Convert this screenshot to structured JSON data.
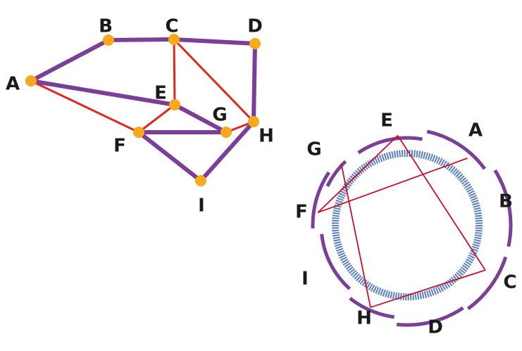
{
  "graph": {
    "nodes": [
      {
        "id": "A",
        "label": "A"
      },
      {
        "id": "B",
        "label": "B"
      },
      {
        "id": "C",
        "label": "C"
      },
      {
        "id": "D",
        "label": "D"
      },
      {
        "id": "E",
        "label": "E"
      },
      {
        "id": "F",
        "label": "F"
      },
      {
        "id": "G",
        "label": "G"
      },
      {
        "id": "H",
        "label": "H"
      },
      {
        "id": "I",
        "label": "I"
      }
    ],
    "purple_edges": [
      [
        "A",
        "B"
      ],
      [
        "B",
        "C"
      ],
      [
        "C",
        "D"
      ],
      [
        "D",
        "H"
      ],
      [
        "A",
        "E"
      ],
      [
        "E",
        "G"
      ],
      [
        "F",
        "G"
      ],
      [
        "F",
        "I"
      ],
      [
        "I",
        "H"
      ]
    ],
    "red_edges": [
      [
        "A",
        "F"
      ],
      [
        "C",
        "E"
      ],
      [
        "C",
        "H"
      ],
      [
        "E",
        "F"
      ],
      [
        "G",
        "H"
      ]
    ]
  },
  "circle_embedding": {
    "order": [
      "E",
      "A",
      "B",
      "C",
      "D",
      "H",
      "I",
      "F",
      "G"
    ],
    "arc_labels": [
      {
        "label": "E"
      },
      {
        "label": "A"
      },
      {
        "label": "B"
      },
      {
        "label": "C"
      },
      {
        "label": "D"
      },
      {
        "label": "H"
      },
      {
        "label": "I"
      },
      {
        "label": "F"
      },
      {
        "label": "G"
      }
    ],
    "chords": [
      [
        "A",
        "F"
      ],
      [
        "C",
        "E"
      ],
      [
        "C",
        "H"
      ],
      [
        "E",
        "F"
      ],
      [
        "G",
        "H"
      ]
    ]
  },
  "colors": {
    "purple": "#7b3f97",
    "red": "#e0281e",
    "node": "#f7a81b",
    "chord": "#c8102e",
    "blue_ring": "#5b7fbf"
  }
}
